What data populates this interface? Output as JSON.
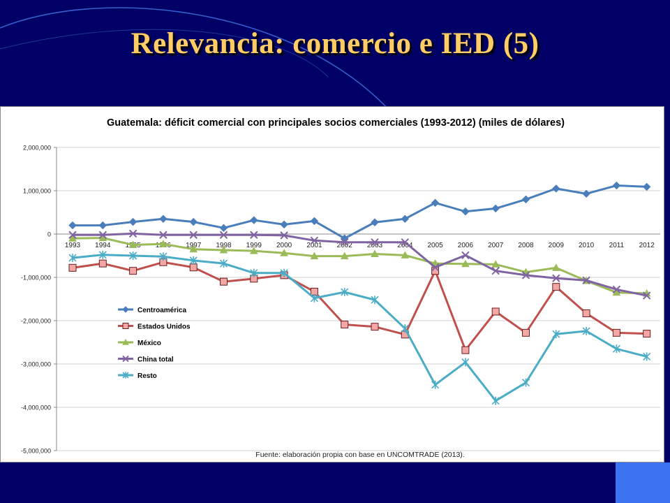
{
  "slide": {
    "title": "Relevancia: comercio e IED (5)"
  },
  "colors": {
    "background": "#000066",
    "title": "#ffcc66",
    "accent_square": "#3c73f0"
  },
  "chart_data": {
    "type": "line",
    "title": "Guatemala: déficit comercial con principales socios comerciales (1993-2012) (miles de dólares)",
    "source": "Fuente: elaboración propia con base en UNCOMTRADE (2013).",
    "xlabel": "",
    "ylabel": "",
    "x": [
      "1993",
      "1994",
      "1995",
      "1996",
      "1997",
      "1998",
      "1999",
      "2000",
      "2001",
      "2002",
      "2003",
      "2004",
      "2005",
      "2006",
      "2007",
      "2008",
      "2009",
      "2010",
      "2011",
      "2012"
    ],
    "ylim": [
      -5000000,
      2000000
    ],
    "yticks": [
      2000000,
      1000000,
      0,
      -1000000,
      -2000000,
      -3000000,
      -4000000,
      -5000000
    ],
    "ytick_labels": [
      "2,000,000",
      "1,000,000",
      "0",
      "-1,000,000",
      "-2,000,000",
      "-3,000,000",
      "-4,000,000",
      "-5,000,000"
    ],
    "grid": true,
    "legend_position": "left",
    "series": [
      {
        "name": "Centroamérica",
        "color": "#4a7ebb",
        "marker": "diamond",
        "values": [
          200000,
          200000,
          280000,
          350000,
          280000,
          140000,
          320000,
          220000,
          300000,
          -100000,
          270000,
          350000,
          720000,
          520000,
          590000,
          800000,
          1050000,
          930000,
          1120000,
          1090000
        ]
      },
      {
        "name": "Estados Unidos",
        "color": "#c0504d",
        "marker": "square",
        "values": [
          -780000,
          -680000,
          -850000,
          -650000,
          -770000,
          -1100000,
          -1030000,
          -950000,
          -1330000,
          -2090000,
          -2140000,
          -2320000,
          -850000,
          -2680000,
          -1790000,
          -2280000,
          -1220000,
          -1830000,
          -2280000,
          -2300000
        ]
      },
      {
        "name": "México",
        "color": "#9bbb59",
        "marker": "triangle",
        "values": [
          -100000,
          -90000,
          -250000,
          -230000,
          -350000,
          -370000,
          -390000,
          -440000,
          -510000,
          -510000,
          -460000,
          -490000,
          -680000,
          -690000,
          -700000,
          -880000,
          -780000,
          -1080000,
          -1350000,
          -1370000
        ]
      },
      {
        "name": "China total",
        "color": "#8064a2",
        "marker": "x",
        "values": [
          -20000,
          -20000,
          10000,
          -20000,
          -20000,
          -20000,
          -20000,
          -30000,
          -150000,
          -190000,
          -190000,
          -190000,
          -770000,
          -490000,
          -850000,
          -950000,
          -1020000,
          -1070000,
          -1280000,
          -1420000
        ]
      },
      {
        "name": "Resto",
        "color": "#4bacc6",
        "marker": "star",
        "values": [
          -550000,
          -480000,
          -500000,
          -520000,
          -610000,
          -680000,
          -900000,
          -900000,
          -1480000,
          -1340000,
          -1520000,
          -2180000,
          -3480000,
          -2960000,
          -3850000,
          -3430000,
          -2310000,
          -2240000,
          -2650000,
          -2830000
        ]
      }
    ]
  }
}
